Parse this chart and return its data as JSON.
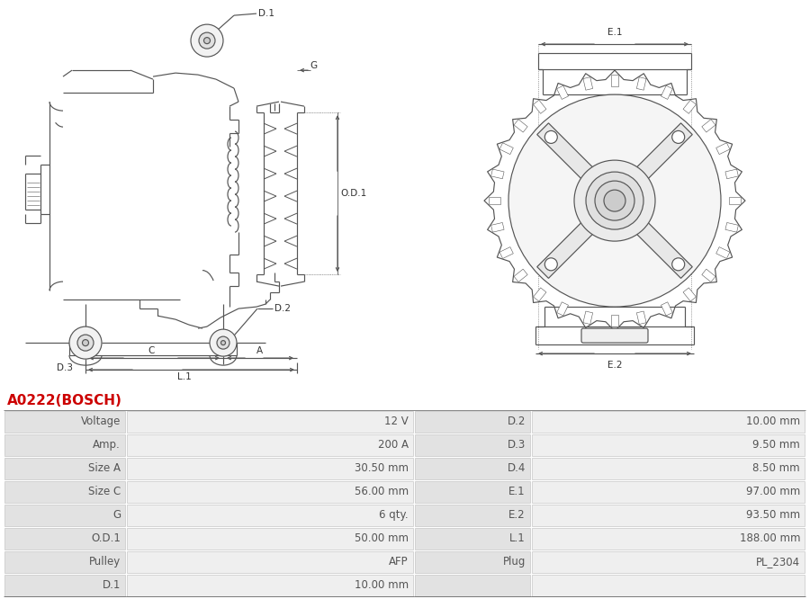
{
  "title": "A0222(BOSCH)",
  "title_color": "#cc0000",
  "bg_color": "#ffffff",
  "table_row_bg_dark": "#e2e2e2",
  "table_row_bg_light": "#efefef",
  "table_data": [
    [
      "Voltage",
      "12 V",
      "D.2",
      "10.00 mm"
    ],
    [
      "Amp.",
      "200 A",
      "D.3",
      "9.50 mm"
    ],
    [
      "Size A",
      "30.50 mm",
      "D.4",
      "8.50 mm"
    ],
    [
      "Size C",
      "56.00 mm",
      "E.1",
      "97.00 mm"
    ],
    [
      "G",
      "6 qty.",
      "E.2",
      "93.50 mm"
    ],
    [
      "O.D.1",
      "50.00 mm",
      "L.1",
      "188.00 mm"
    ],
    [
      "Pulley",
      "AFP",
      "Plug",
      "PL_2304"
    ],
    [
      "D.1",
      "10.00 mm",
      "",
      ""
    ]
  ],
  "font_size_table": 8.5,
  "font_size_title": 11,
  "lc": "#555555",
  "lw": 0.85
}
